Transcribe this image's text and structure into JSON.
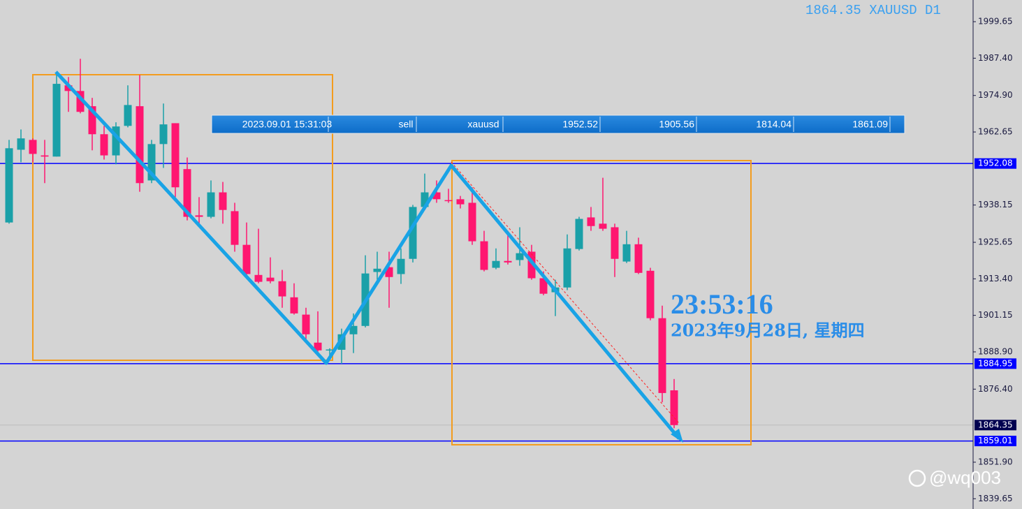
{
  "chart_data": {
    "type": "candlestick",
    "symbol_label": "1864.35 XAUUSD D1",
    "up_color": "#1aa0a8",
    "down_color": "#ff1670",
    "open": [
      1932.3,
      1956.7,
      1960.0,
      1954.8,
      1954.4,
      1978.3,
      1976.4,
      1971.3,
      1961.9,
      1954.8,
      1964.7,
      1971.3,
      1946.4,
      1958.6,
      1965.6,
      1950.2,
      1934.7,
      1934.2,
      1942.4,
      1936.1,
      1924.8,
      1914.7,
      1913.8,
      1912.6,
      1907.2,
      1901.4,
      1892.0,
      1889.6,
      1889.6,
      1894.8,
      1897.6,
      1915.7,
      1917.3,
      1915.0,
      1920.1,
      1937.5,
      1942.4,
      1939.8,
      1940.1,
      1938.9,
      1926.0,
      1917.1,
      1919.4,
      1919.7,
      1922.5,
      1913.6,
      1908.9,
      1910.5,
      1923.4,
      1934.0,
      1931.9,
      1930.7,
      1919.2,
      1925.0,
      1916.1,
      1900.2,
      1876.0
    ],
    "high": [
      1960.0,
      1963.5,
      1960.5,
      1960.0,
      1982.8,
      1981.1,
      1987.2,
      1974.1,
      1964.7,
      1965.9,
      1978.3,
      1981.8,
      1960.0,
      1972.2,
      1965.6,
      1954.1,
      1940.8,
      1946.4,
      1945.9,
      1938.9,
      1932.3,
      1930.2,
      1920.6,
      1916.4,
      1911.9,
      1903.7,
      1902.5,
      1890.1,
      1896.7,
      1901.8,
      1921.3,
      1922.5,
      1922.5,
      1923.6,
      1938.2,
      1948.7,
      1946.4,
      1943.6,
      1941.2,
      1944.1,
      1929.5,
      1923.6,
      1929.5,
      1930.7,
      1924.8,
      1915.9,
      1913.1,
      1928.3,
      1934.2,
      1937.5,
      1947.3,
      1931.9,
      1929.5,
      1927.2,
      1917.1,
      1904.4,
      1879.8
    ],
    "low": [
      1931.9,
      1952.5,
      1952.5,
      1945.5,
      1954.4,
      1969.4,
      1968.9,
      1956.5,
      1953.4,
      1951.8,
      1964.2,
      1942.6,
      1945.5,
      1950.6,
      1940.8,
      1933.0,
      1931.4,
      1933.7,
      1931.9,
      1922.5,
      1914.3,
      1911.9,
      1911.9,
      1903.7,
      1901.4,
      1892.0,
      1888.9,
      1887.3,
      1884.9,
      1888.5,
      1897.1,
      1913.1,
      1903.7,
      1911.7,
      1918.9,
      1936.5,
      1938.9,
      1938.9,
      1937.0,
      1924.8,
      1915.9,
      1916.6,
      1918.2,
      1917.8,
      1913.1,
      1907.9,
      1900.9,
      1909.6,
      1922.9,
      1929.5,
      1929.5,
      1914.0,
      1918.7,
      1915.0,
      1899.5,
      1872.0,
      1863.3
    ],
    "close": [
      1957.2,
      1960.5,
      1955.3,
      1954.4,
      1978.8,
      1976.4,
      1969.4,
      1961.9,
      1954.8,
      1964.5,
      1971.7,
      1945.5,
      1958.6,
      1965.2,
      1944.1,
      1934.2,
      1934.2,
      1942.4,
      1936.5,
      1924.8,
      1915.0,
      1912.4,
      1912.6,
      1907.5,
      1901.8,
      1894.8,
      1889.4,
      1889.7,
      1894.8,
      1897.6,
      1915.2,
      1916.8,
      1914.0,
      1920.1,
      1937.5,
      1942.4,
      1940.1,
      1939.6,
      1938.4,
      1926.0,
      1916.4,
      1919.4,
      1918.9,
      1922.0,
      1913.6,
      1908.4,
      1910.5,
      1923.6,
      1933.5,
      1931.1,
      1930.2,
      1920.1,
      1925.0,
      1915.4,
      1900.2,
      1875.1,
      1864.35
    ],
    "ylim": [
      1836.2,
      2006.92
    ],
    "yticks": [
      1999.65,
      {
        "value": 1987.4,
        "label": "1987.40"
      },
      {
        "value": 1974.9,
        "label": "1974.90"
      },
      1962.65,
      1938.15,
      1925.65,
      {
        "value": 1913.4,
        "label": "1913.40"
      },
      1901.15,
      {
        "value": 1888.9,
        "label": "1888.90"
      },
      {
        "value": 1876.4,
        "label": "1876.40"
      },
      {
        "value": 1851.9,
        "label": "1851.90"
      },
      1839.65
    ],
    "levels": [
      {
        "value": 1952.08,
        "color": "#0000ff",
        "label_color": "#0000ff"
      },
      {
        "value": 1884.95,
        "color": "#0000ff",
        "label_color": "#0000ff"
      },
      {
        "value": 1864.35,
        "color": "#bdbdbd",
        "label_color": "#000050"
      },
      {
        "value": 1859.01,
        "color": "#0000ff",
        "label_color": "#0000ff"
      }
    ],
    "order_row": [
      "2023.09.01 15:31:03",
      "sell",
      "xauusd",
      "1952.52",
      "1905.56",
      "1814.04",
      "1861.09"
    ],
    "clock": "23:53:16",
    "date_text": "2023年9月28日, 星期四",
    "watermark": "@wq003"
  }
}
